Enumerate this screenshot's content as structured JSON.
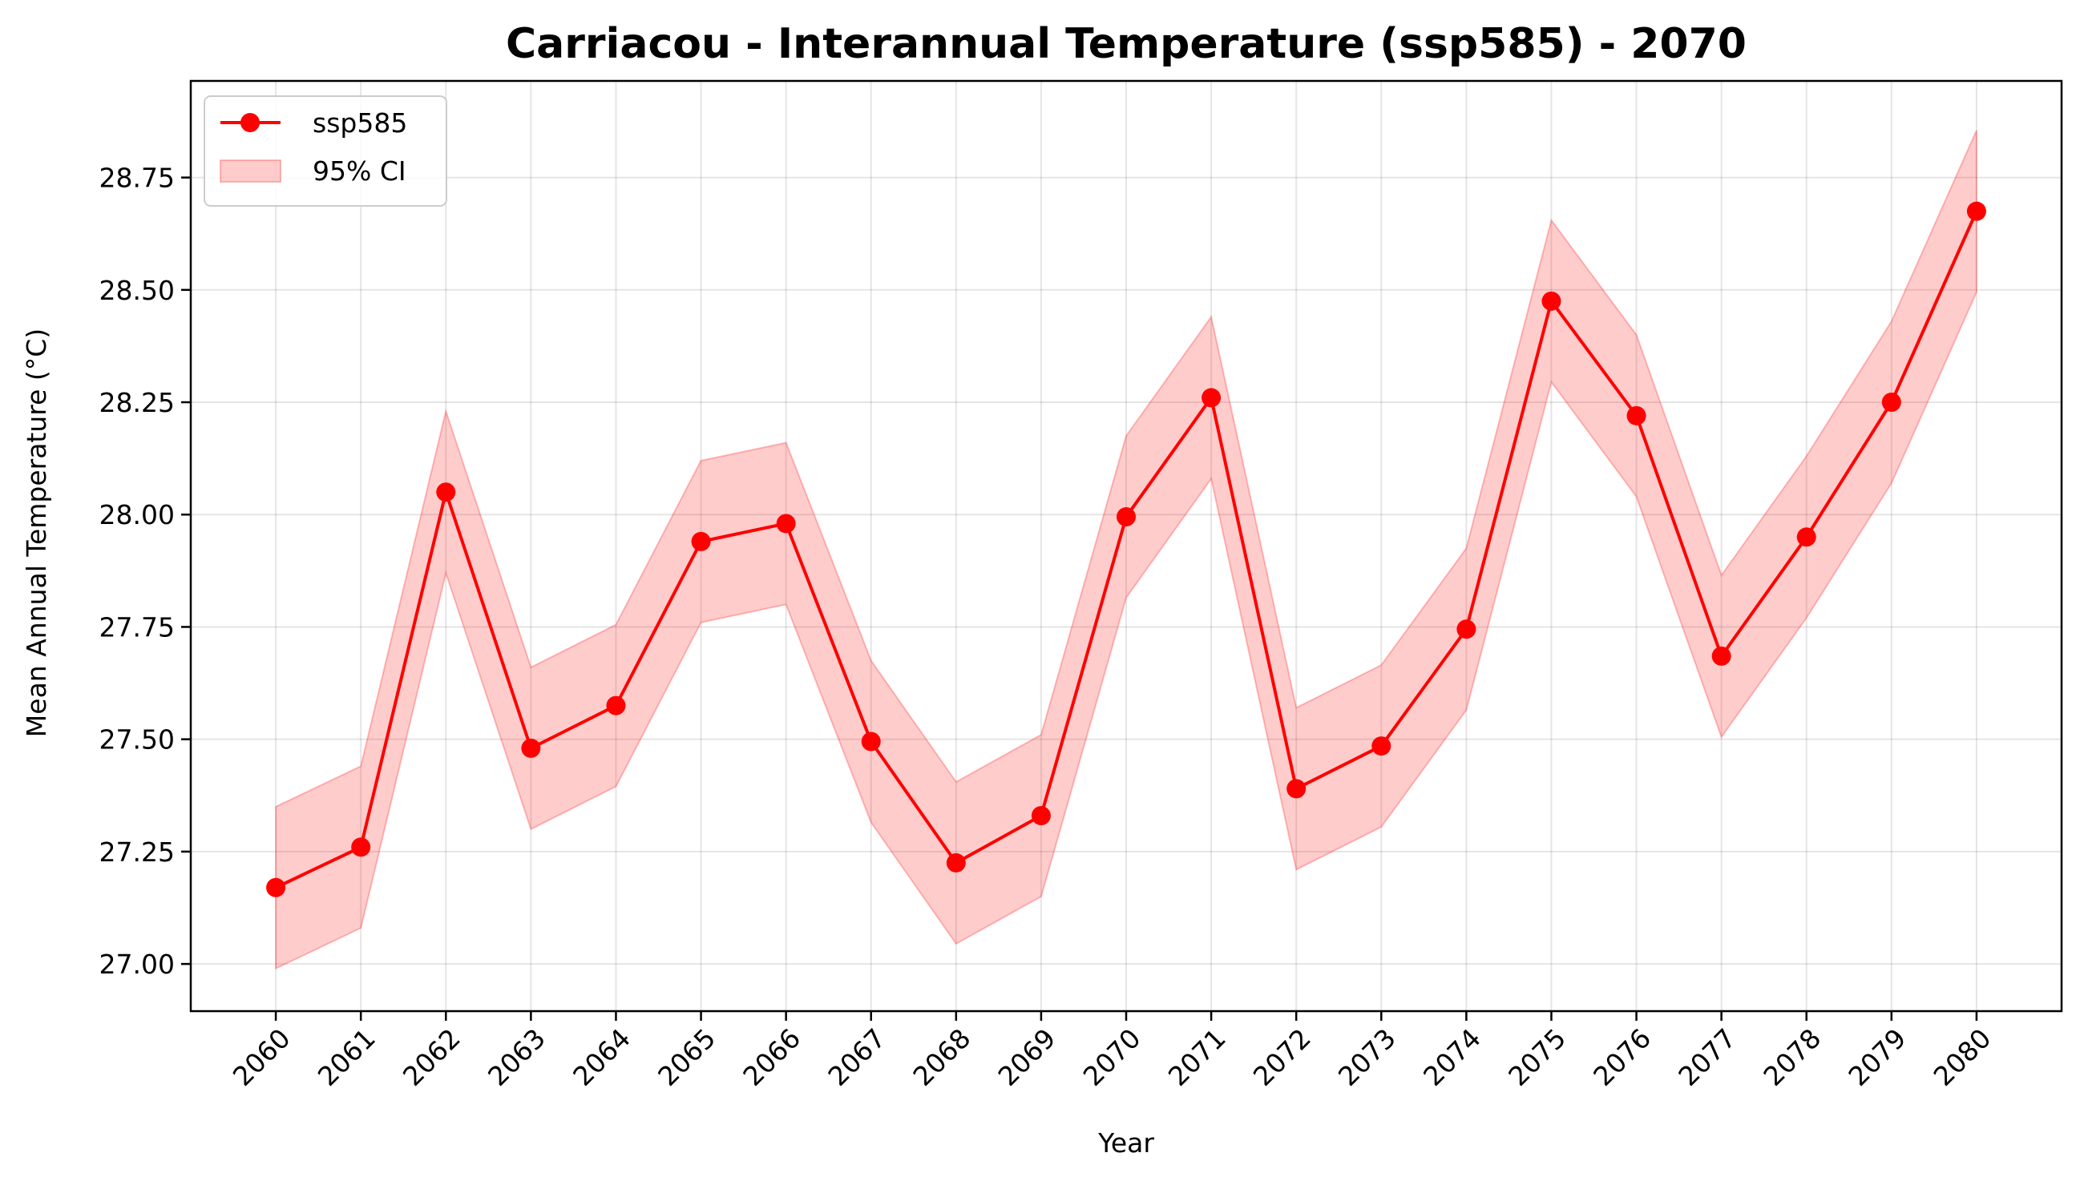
{
  "chart_data": {
    "type": "line",
    "title": "Carriacou - Interannual Temperature (ssp585) - 2070",
    "xlabel": "Year",
    "ylabel": "Mean Annual Temperature (°C)",
    "x": [
      2060,
      2061,
      2062,
      2063,
      2064,
      2065,
      2066,
      2067,
      2068,
      2069,
      2070,
      2071,
      2072,
      2073,
      2074,
      2075,
      2076,
      2077,
      2078,
      2079,
      2080
    ],
    "x_tick_labels": [
      "2060",
      "2061",
      "2062",
      "2063",
      "2064",
      "2065",
      "2066",
      "2067",
      "2068",
      "2069",
      "2070",
      "2071",
      "2072",
      "2073",
      "2074",
      "2075",
      "2076",
      "2077",
      "2078",
      "2079",
      "2080"
    ],
    "y_ticks": [
      27.0,
      27.25,
      27.5,
      27.75,
      28.0,
      28.25,
      28.5,
      28.75
    ],
    "y_tick_labels": [
      "27.00",
      "27.25",
      "27.50",
      "27.75",
      "28.00",
      "28.25",
      "28.50",
      "28.75"
    ],
    "ylim": [
      26.895,
      28.965
    ],
    "xlim": [
      2059.0,
      2081.0
    ],
    "grid": true,
    "legend_position": "top-left",
    "series": [
      {
        "name": "ssp585",
        "color": "#ff0000",
        "marker": "circle",
        "values": [
          27.17,
          27.26,
          28.05,
          27.48,
          27.575,
          27.94,
          27.98,
          27.495,
          27.225,
          27.33,
          27.995,
          28.26,
          27.39,
          27.485,
          27.745,
          28.475,
          28.22,
          27.685,
          27.95,
          28.25,
          28.675
        ]
      }
    ],
    "confidence_interval": {
      "name": "95% CI",
      "color": "#ff0000",
      "opacity": 0.2,
      "lower": [
        26.99,
        27.08,
        27.87,
        27.3,
        27.395,
        27.76,
        27.8,
        27.315,
        27.045,
        27.15,
        27.815,
        28.08,
        27.21,
        27.305,
        27.565,
        28.295,
        28.04,
        27.505,
        27.77,
        28.07,
        28.495
      ],
      "upper": [
        27.35,
        27.44,
        28.23,
        27.66,
        27.755,
        28.12,
        28.16,
        27.675,
        27.405,
        27.51,
        28.175,
        28.44,
        27.57,
        27.665,
        27.925,
        28.655,
        28.4,
        27.865,
        28.13,
        28.43,
        28.855
      ]
    }
  }
}
